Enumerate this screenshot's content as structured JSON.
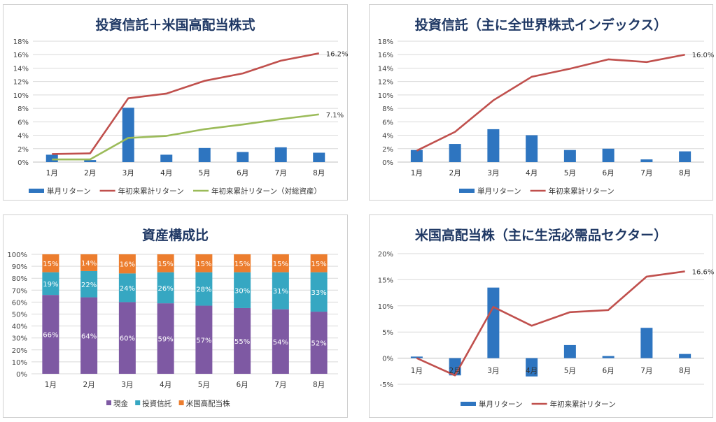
{
  "colors": {
    "bar_blue": "#2e75c0",
    "line_red": "#c0504d",
    "line_green": "#9bbb59",
    "cash_purple": "#7e59a3",
    "fund_teal": "#36a7c2",
    "us_orange": "#ec7d2e",
    "title_navy": "#1f3864"
  },
  "chart_data": [
    {
      "type": "bar+line",
      "title": "投資信託＋米国高配当株式",
      "categories": [
        "1月",
        "2月",
        "3月",
        "4月",
        "5月",
        "6月",
        "7月",
        "8月"
      ],
      "ylim": [
        0,
        18
      ],
      "y_ticks": [
        "0%",
        "2%",
        "4%",
        "6%",
        "8%",
        "10%",
        "12%",
        "14%",
        "16%",
        "18%"
      ],
      "grid": true,
      "legend_position": "bottom",
      "series": [
        {
          "name": "単月リターン",
          "type": "bar",
          "values": [
            1.1,
            0.3,
            8.1,
            1.1,
            2.1,
            1.5,
            2.2,
            1.4
          ]
        },
        {
          "name": "年初来累計リターン",
          "type": "line",
          "values": [
            1.2,
            1.3,
            9.5,
            10.2,
            12.1,
            13.2,
            15.1,
            16.2
          ],
          "end_label": "16.2%"
        },
        {
          "name": "年初来累計リターン（対総資産）",
          "type": "line",
          "values": [
            0.4,
            0.4,
            3.6,
            3.9,
            4.9,
            5.6,
            6.4,
            7.1
          ],
          "end_label": "7.1%"
        }
      ]
    },
    {
      "type": "bar+line",
      "title": "投資信託（主に全世界株式インデックス）",
      "categories": [
        "1月",
        "2月",
        "3月",
        "4月",
        "5月",
        "6月",
        "7月",
        "8月"
      ],
      "ylim": [
        0,
        18
      ],
      "y_ticks": [
        "0%",
        "2%",
        "4%",
        "6%",
        "8%",
        "10%",
        "12%",
        "14%",
        "16%",
        "18%"
      ],
      "grid": true,
      "legend_position": "bottom",
      "series": [
        {
          "name": "単月リターン",
          "type": "bar",
          "values": [
            1.8,
            2.7,
            4.9,
            4.0,
            1.8,
            2.0,
            0.4,
            1.6
          ]
        },
        {
          "name": "年初来累計リターン",
          "type": "line",
          "values": [
            1.7,
            4.5,
            9.2,
            12.7,
            13.9,
            15.3,
            14.9,
            16.0
          ],
          "end_label": "16.0%"
        }
      ]
    },
    {
      "type": "stacked_bar_100",
      "title": "資産構成比",
      "categories": [
        "1月",
        "2月",
        "3月",
        "4月",
        "5月",
        "6月",
        "7月",
        "8月"
      ],
      "ylim": [
        0,
        100
      ],
      "y_ticks": [
        "0%",
        "10%",
        "20%",
        "30%",
        "40%",
        "50%",
        "60%",
        "70%",
        "80%",
        "90%",
        "100%"
      ],
      "grid": true,
      "legend_position": "bottom",
      "series": [
        {
          "name": "現金",
          "values": [
            66,
            64,
            60,
            59,
            57,
            55,
            54,
            52
          ],
          "labels": [
            "66%",
            "64%",
            "60%",
            "59%",
            "57%",
            "55%",
            "54%",
            "52%"
          ]
        },
        {
          "name": "投資信託",
          "values": [
            19,
            22,
            24,
            26,
            28,
            30,
            31,
            33
          ],
          "labels": [
            "19%",
            "22%",
            "24%",
            "26%",
            "28%",
            "30%",
            "31%",
            "33%"
          ]
        },
        {
          "name": "米国高配当株",
          "values": [
            15,
            14,
            16,
            15,
            15,
            15,
            15,
            15
          ],
          "labels": [
            "15%",
            "14%",
            "16%",
            "15%",
            "15%",
            "15%",
            "15%",
            "15%"
          ]
        }
      ]
    },
    {
      "type": "bar+line",
      "title": "米国高配当株（主に生活必需品セクター）",
      "categories": [
        "1月",
        "2月",
        "3月",
        "4月",
        "5月",
        "6月",
        "7月",
        "8月"
      ],
      "ylim": [
        -5,
        20
      ],
      "y_ticks": [
        "-5%",
        "0%",
        "5%",
        "10%",
        "15%",
        "20%"
      ],
      "grid": true,
      "legend_position": "bottom",
      "series": [
        {
          "name": "単月リターン",
          "type": "bar",
          "values": [
            0.3,
            -3.3,
            13.5,
            -3.5,
            2.5,
            0.4,
            5.8,
            0.8
          ]
        },
        {
          "name": "年初来累計リターン",
          "type": "line",
          "values": [
            0.0,
            -3.3,
            9.8,
            6.2,
            8.8,
            9.2,
            15.6,
            16.6
          ],
          "end_label": "16.6%"
        }
      ]
    }
  ]
}
